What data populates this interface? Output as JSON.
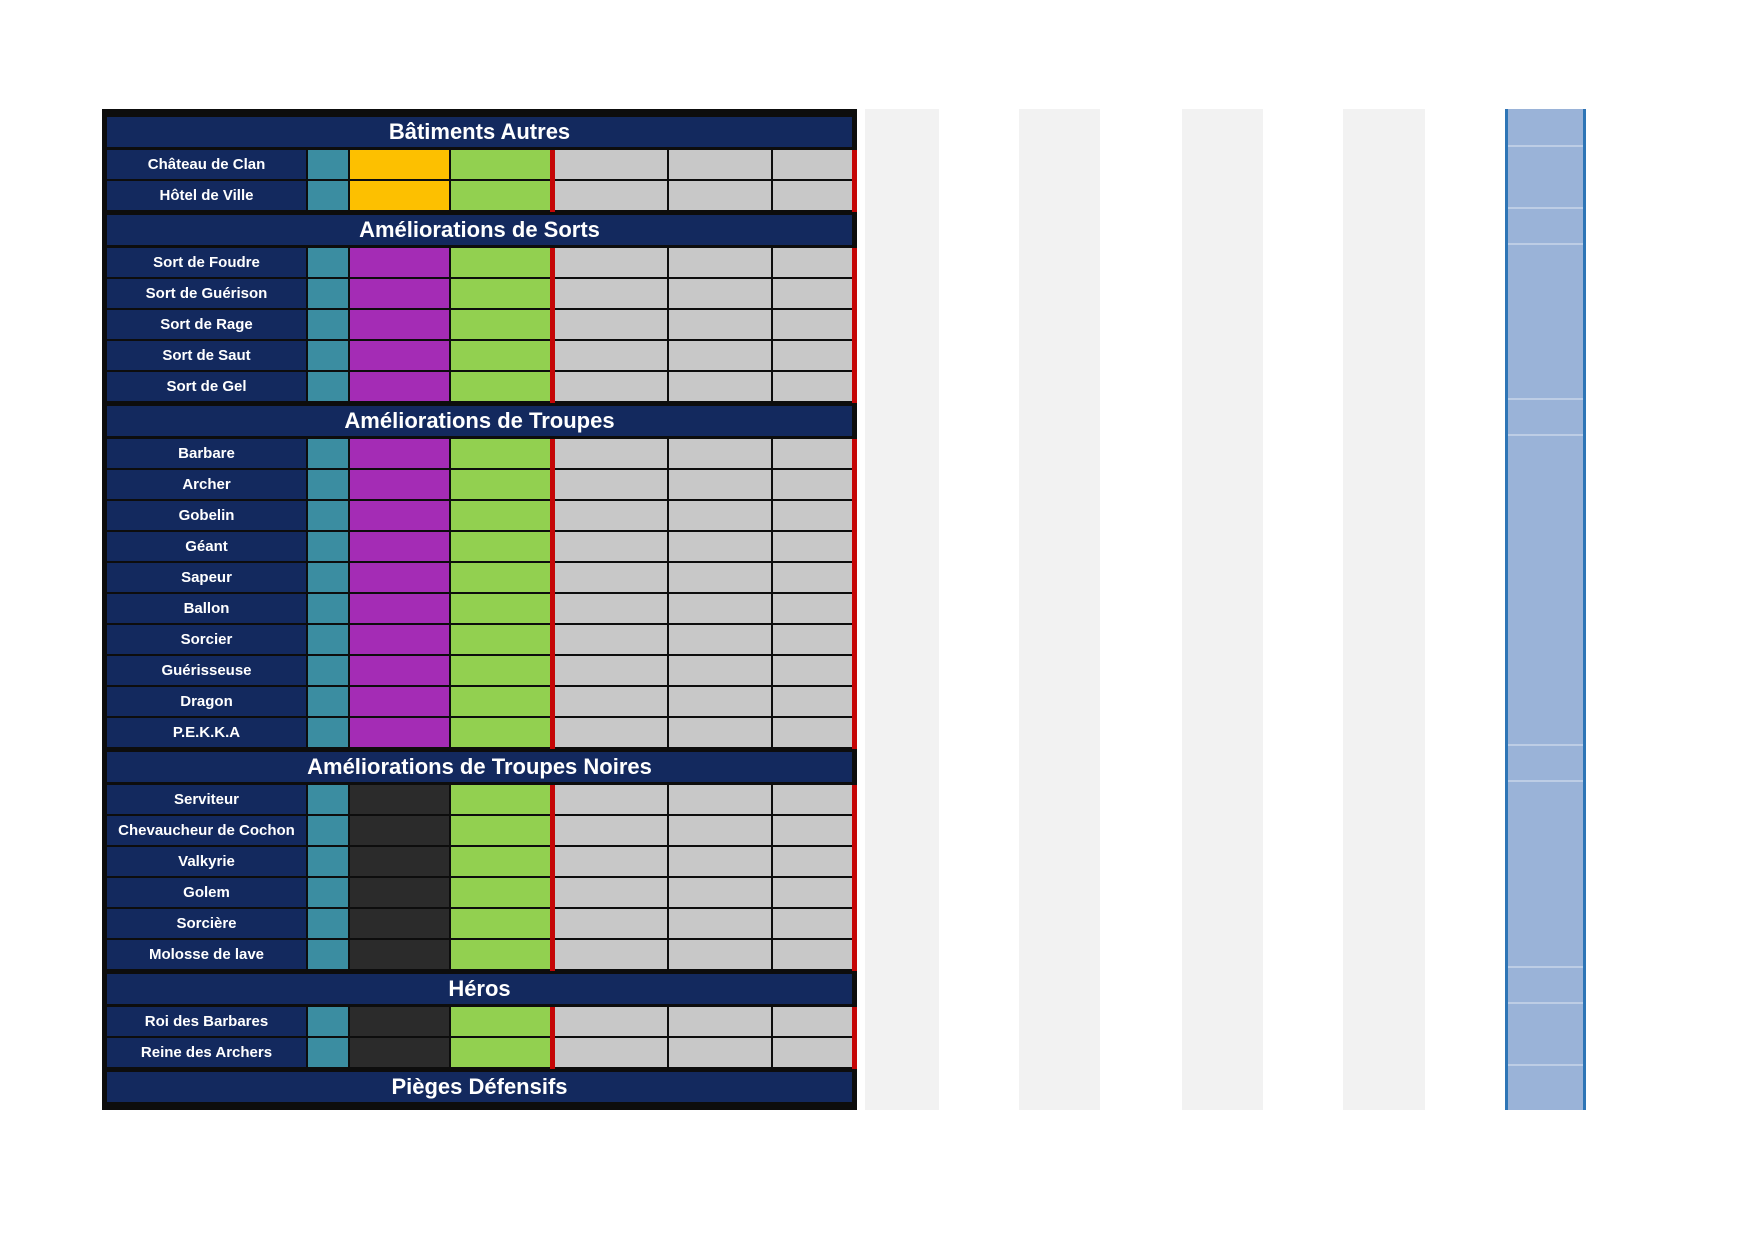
{
  "colors": {
    "navy": "#13295e",
    "grid": "#0d0d0d",
    "teal": "#3b8da1",
    "amber": "#fdc000",
    "magenta": "#a42cb5",
    "green": "#92d050",
    "dark": "#2b2b2b",
    "gray": "#c8c8c8",
    "red": "#c50606",
    "stripe": "#f2f2f2",
    "hlfill": "#9ab3d8",
    "hlborder": "#2e75b6"
  },
  "table": {
    "sections": [
      {
        "header": "Bâtiments Autres",
        "row_color_key": "amber",
        "rows": [
          "Château de Clan",
          "Hôtel de Ville"
        ]
      },
      {
        "header": "Améliorations de Sorts",
        "row_color_key": "magenta",
        "rows": [
          "Sort de Foudre",
          "Sort de Guérison",
          "Sort de Rage",
          "Sort de Saut",
          "Sort de Gel"
        ]
      },
      {
        "header": "Améliorations de Troupes",
        "row_color_key": "magenta",
        "rows": [
          "Barbare",
          "Archer",
          "Gobelin",
          "Géant",
          "Sapeur",
          "Ballon",
          "Sorcier",
          "Guérisseuse",
          "Dragon",
          "P.E.K.K.A"
        ]
      },
      {
        "header": "Améliorations de Troupes Noires",
        "row_color_key": "dark",
        "rows": [
          "Serviteur",
          "Chevaucheur de Cochon",
          "Valkyrie",
          "Golem",
          "Sorcière",
          "Molosse de lave"
        ]
      },
      {
        "header": "Héros",
        "row_color_key": "dark",
        "rows": [
          "Roi des Barbares",
          "Reine des Archers"
        ]
      },
      {
        "header": "Pièges Défensifs",
        "row_color_key": null,
        "rows": []
      }
    ]
  }
}
